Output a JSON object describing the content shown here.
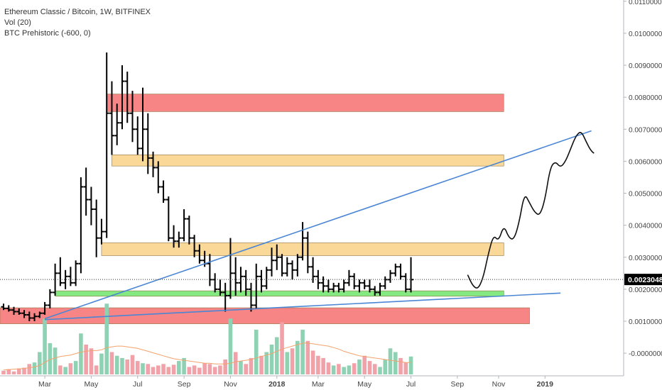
{
  "chart_data": {
    "type": "ohlc",
    "title": "Ethereum Classic / Bitcoin, 1W, BITFINEX",
    "indicators": [
      "Vol (20)",
      "BTC Prehistoric (-600, 0)"
    ],
    "ylim": [
      -0.0011,
      0.0111
    ],
    "y_ticks": [
      "0.0110000",
      "0.0100000",
      "0.0090000",
      "0.0080000",
      "0.0070000",
      "0.0060000",
      "0.0050000",
      "0.0040000",
      "0.0030000",
      "0.0020000",
      "0.0010000",
      "-0.0000000"
    ],
    "y_tick_values": [
      0.011,
      0.01,
      0.009,
      0.008,
      0.007,
      0.006,
      0.005,
      0.004,
      0.003,
      0.002,
      0.001,
      0.0
    ],
    "x_ticks": [
      "Mar",
      "May",
      "Jul",
      "Sep",
      "Nov",
      "2018",
      "Mar",
      "May",
      "Jul",
      "Sep",
      "Nov",
      "2019"
    ],
    "x_tick_weeks": [
      8,
      17,
      26,
      35,
      44,
      53,
      61,
      70,
      79,
      88,
      96,
      105
    ],
    "week_range": [
      0,
      115
    ],
    "last_price": "0.0023048",
    "last_price_value": 0.0023048,
    "candles": [
      [
        0.00145,
        0.00155,
        0.00135,
        0.0014
      ],
      [
        0.0014,
        0.0015,
        0.0013,
        0.00135
      ],
      [
        0.00135,
        0.00145,
        0.0012,
        0.0013
      ],
      [
        0.0013,
        0.0014,
        0.0012,
        0.00125
      ],
      [
        0.00125,
        0.00135,
        0.0011,
        0.0012
      ],
      [
        0.0012,
        0.0013,
        0.001,
        0.0011
      ],
      [
        0.0011,
        0.00125,
        0.001,
        0.00115
      ],
      [
        0.00115,
        0.0013,
        0.0011,
        0.00125
      ],
      [
        0.00125,
        0.0016,
        0.0012,
        0.0015
      ],
      [
        0.0015,
        0.002,
        0.0014,
        0.0019
      ],
      [
        0.0019,
        0.0028,
        0.0018,
        0.0025
      ],
      [
        0.0025,
        0.003,
        0.0021,
        0.0022
      ],
      [
        0.0022,
        0.0026,
        0.002,
        0.0024
      ],
      [
        0.0024,
        0.0027,
        0.0021,
        0.0022
      ],
      [
        0.0022,
        0.0029,
        0.0021,
        0.0028
      ],
      [
        0.0028,
        0.0055,
        0.0025,
        0.0052
      ],
      [
        0.0052,
        0.0058,
        0.0043,
        0.0048
      ],
      [
        0.0048,
        0.0052,
        0.004,
        0.0045
      ],
      [
        0.0045,
        0.0048,
        0.003,
        0.0036
      ],
      [
        0.0036,
        0.0042,
        0.0034,
        0.0038
      ],
      [
        0.0038,
        0.0094,
        0.0036,
        0.0075
      ],
      [
        0.0075,
        0.0085,
        0.0062,
        0.0068
      ],
      [
        0.0068,
        0.0078,
        0.0065,
        0.0072
      ],
      [
        0.0072,
        0.009,
        0.007,
        0.0085
      ],
      [
        0.0085,
        0.0088,
        0.0072,
        0.0075
      ],
      [
        0.0075,
        0.0082,
        0.0066,
        0.007
      ],
      [
        0.007,
        0.0074,
        0.0062,
        0.0064
      ],
      [
        0.0064,
        0.0083,
        0.006,
        0.007
      ],
      [
        0.007,
        0.0075,
        0.0056,
        0.0061
      ],
      [
        0.0061,
        0.0063,
        0.0055,
        0.0058
      ],
      [
        0.0058,
        0.006,
        0.005,
        0.0052
      ],
      [
        0.0052,
        0.0054,
        0.0047,
        0.0048
      ],
      [
        0.0048,
        0.0049,
        0.0035,
        0.0036
      ],
      [
        0.0036,
        0.004,
        0.0033,
        0.0035
      ],
      [
        0.0035,
        0.0038,
        0.0033,
        0.0036
      ],
      [
        0.0036,
        0.0045,
        0.0035,
        0.0042
      ],
      [
        0.0042,
        0.0043,
        0.0034,
        0.0036
      ],
      [
        0.0036,
        0.0037,
        0.003,
        0.0032
      ],
      [
        0.0032,
        0.0034,
        0.0028,
        0.0029
      ],
      [
        0.0029,
        0.0032,
        0.0027,
        0.0028
      ],
      [
        0.0028,
        0.0031,
        0.0021,
        0.0023
      ],
      [
        0.0023,
        0.0025,
        0.0019,
        0.002
      ],
      [
        0.002,
        0.0023,
        0.0018,
        0.0019
      ],
      [
        0.0019,
        0.0022,
        0.0013,
        0.0018
      ],
      [
        0.0018,
        0.0036,
        0.0017,
        0.0025
      ],
      [
        0.0025,
        0.003,
        0.0018,
        0.0022
      ],
      [
        0.0022,
        0.0027,
        0.0019,
        0.0024
      ],
      [
        0.0024,
        0.0026,
        0.0018,
        0.002
      ],
      [
        0.002,
        0.0022,
        0.0013,
        0.0015
      ],
      [
        0.0015,
        0.0028,
        0.0014,
        0.0024
      ],
      [
        0.0024,
        0.0026,
        0.0019,
        0.0021
      ],
      [
        0.0021,
        0.0027,
        0.002,
        0.0026
      ],
      [
        0.0026,
        0.0033,
        0.0024,
        0.0029
      ],
      [
        0.0029,
        0.0034,
        0.0026,
        0.003
      ],
      [
        0.003,
        0.0031,
        0.0024,
        0.0025
      ],
      [
        0.0025,
        0.003,
        0.0024,
        0.0028
      ],
      [
        0.0028,
        0.0029,
        0.0023,
        0.0026
      ],
      [
        0.0026,
        0.0031,
        0.0024,
        0.003
      ],
      [
        0.003,
        0.0041,
        0.0029,
        0.0036
      ],
      [
        0.0036,
        0.0038,
        0.0025,
        0.0027
      ],
      [
        0.0027,
        0.003,
        0.0022,
        0.0024
      ],
      [
        0.0024,
        0.0026,
        0.002,
        0.0022
      ],
      [
        0.0022,
        0.0024,
        0.0019,
        0.0021
      ],
      [
        0.0021,
        0.0023,
        0.0019,
        0.002
      ],
      [
        0.002,
        0.0022,
        0.0019,
        0.0021
      ],
      [
        0.0021,
        0.0022,
        0.0019,
        0.002
      ],
      [
        0.002,
        0.0023,
        0.0019,
        0.0022
      ],
      [
        0.0022,
        0.0026,
        0.0021,
        0.0024
      ],
      [
        0.0024,
        0.0025,
        0.002,
        0.0021
      ],
      [
        0.0021,
        0.0023,
        0.0019,
        0.0022
      ],
      [
        0.0022,
        0.0023,
        0.002,
        0.0021
      ],
      [
        0.0021,
        0.0023,
        0.0019,
        0.002
      ],
      [
        0.002,
        0.0021,
        0.0018,
        0.0019
      ],
      [
        0.0019,
        0.0022,
        0.0018,
        0.0021
      ],
      [
        0.0021,
        0.0024,
        0.002,
        0.0023
      ],
      [
        0.0023,
        0.0026,
        0.0022,
        0.0025
      ],
      [
        0.0025,
        0.0028,
        0.0024,
        0.0027
      ],
      [
        0.0027,
        0.0028,
        0.0023,
        0.0024
      ],
      [
        0.0024,
        0.0025,
        0.0019,
        0.002
      ],
      [
        0.002,
        0.003,
        0.0019,
        0.0023
      ]
    ],
    "volume": [
      5,
      7,
      4,
      8,
      9,
      14,
      16,
      30,
      75,
      42,
      36,
      12,
      10,
      15,
      18,
      55,
      40,
      35,
      12,
      28,
      95,
      30,
      25,
      22,
      20,
      26,
      18,
      15,
      14,
      10,
      12,
      14,
      10,
      13,
      18,
      22,
      10,
      12,
      9,
      15,
      14,
      10,
      12,
      20,
      75,
      30,
      18,
      14,
      22,
      60,
      25,
      30,
      40,
      50,
      70,
      30,
      35,
      45,
      60,
      45,
      32,
      25,
      22,
      16,
      12,
      14,
      10,
      12,
      15,
      20,
      25,
      18,
      14,
      10,
      20,
      35,
      30,
      22,
      16,
      24
    ],
    "volume_ma": [
      6,
      6.5,
      7,
      7.5,
      8,
      9,
      10,
      12,
      16,
      20,
      22,
      24,
      25,
      26,
      28,
      30,
      31,
      32,
      32,
      33,
      36,
      37,
      38,
      38,
      37,
      36,
      35,
      33,
      31,
      29,
      27,
      25,
      23,
      21,
      20,
      19,
      18,
      17,
      16,
      15,
      15,
      14,
      14,
      14,
      15,
      17,
      18,
      19,
      20,
      22,
      24,
      26,
      28,
      31,
      34,
      36,
      38,
      40,
      42,
      42,
      41,
      40,
      39,
      38,
      36,
      34,
      31,
      29,
      27,
      25,
      24,
      23,
      22,
      21,
      20,
      19,
      18,
      17,
      16,
      16
    ],
    "zones": [
      {
        "w0": 20,
        "w1": 97,
        "y0": 0.00755,
        "y1": 0.0081,
        "color": "#f77f7f"
      },
      {
        "w0": 21,
        "w1": 97,
        "y0": 0.00585,
        "y1": 0.0062,
        "color": "#fad793"
      },
      {
        "w0": 19,
        "w1": 97,
        "y0": 0.00305,
        "y1": 0.00345,
        "color": "#fad793"
      },
      {
        "w0": 10,
        "w1": 97,
        "y0": 0.00178,
        "y1": 0.00195,
        "color": "#7ee87a"
      },
      {
        "w0": 0,
        "w1": 102,
        "y0": 0.00092,
        "y1": 0.00142,
        "color": "#f77f7f"
      }
    ],
    "trendlines": [
      {
        "w0": 8,
        "v0": 0.00108,
        "w1": 114,
        "v1": 0.00695,
        "color": "#4a86d4"
      },
      {
        "w0": 8,
        "v0": 0.00105,
        "w1": 108,
        "v1": 0.00188,
        "color": "#4a86d4"
      }
    ],
    "projection": [
      [
        90,
        0.00245
      ],
      [
        91,
        0.0021
      ],
      [
        92,
        0.002
      ],
      [
        93,
        0.00235
      ],
      [
        94,
        0.0031
      ],
      [
        95,
        0.0037
      ],
      [
        96,
        0.0035
      ],
      [
        97,
        0.004
      ],
      [
        98,
        0.0036
      ],
      [
        99,
        0.00355
      ],
      [
        100,
        0.0041
      ],
      [
        101,
        0.005
      ],
      [
        102,
        0.0047
      ],
      [
        103,
        0.0044
      ],
      [
        104,
        0.0043
      ],
      [
        105,
        0.0048
      ],
      [
        106,
        0.0058
      ],
      [
        107,
        0.006
      ],
      [
        108,
        0.0058
      ],
      [
        109,
        0.006
      ],
      [
        110,
        0.0064
      ],
      [
        111,
        0.0068
      ],
      [
        112,
        0.00695
      ],
      [
        113,
        0.0066
      ],
      [
        114,
        0.0063
      ],
      [
        115,
        0.0062
      ]
    ],
    "colors": {
      "candle": "#000000",
      "volume_up": "#8fd1b3",
      "volume_down": "#f0a2a8",
      "volume_ma": "#f4a26b",
      "axis_text": "#444444",
      "price_label_bg": "#000000"
    }
  }
}
